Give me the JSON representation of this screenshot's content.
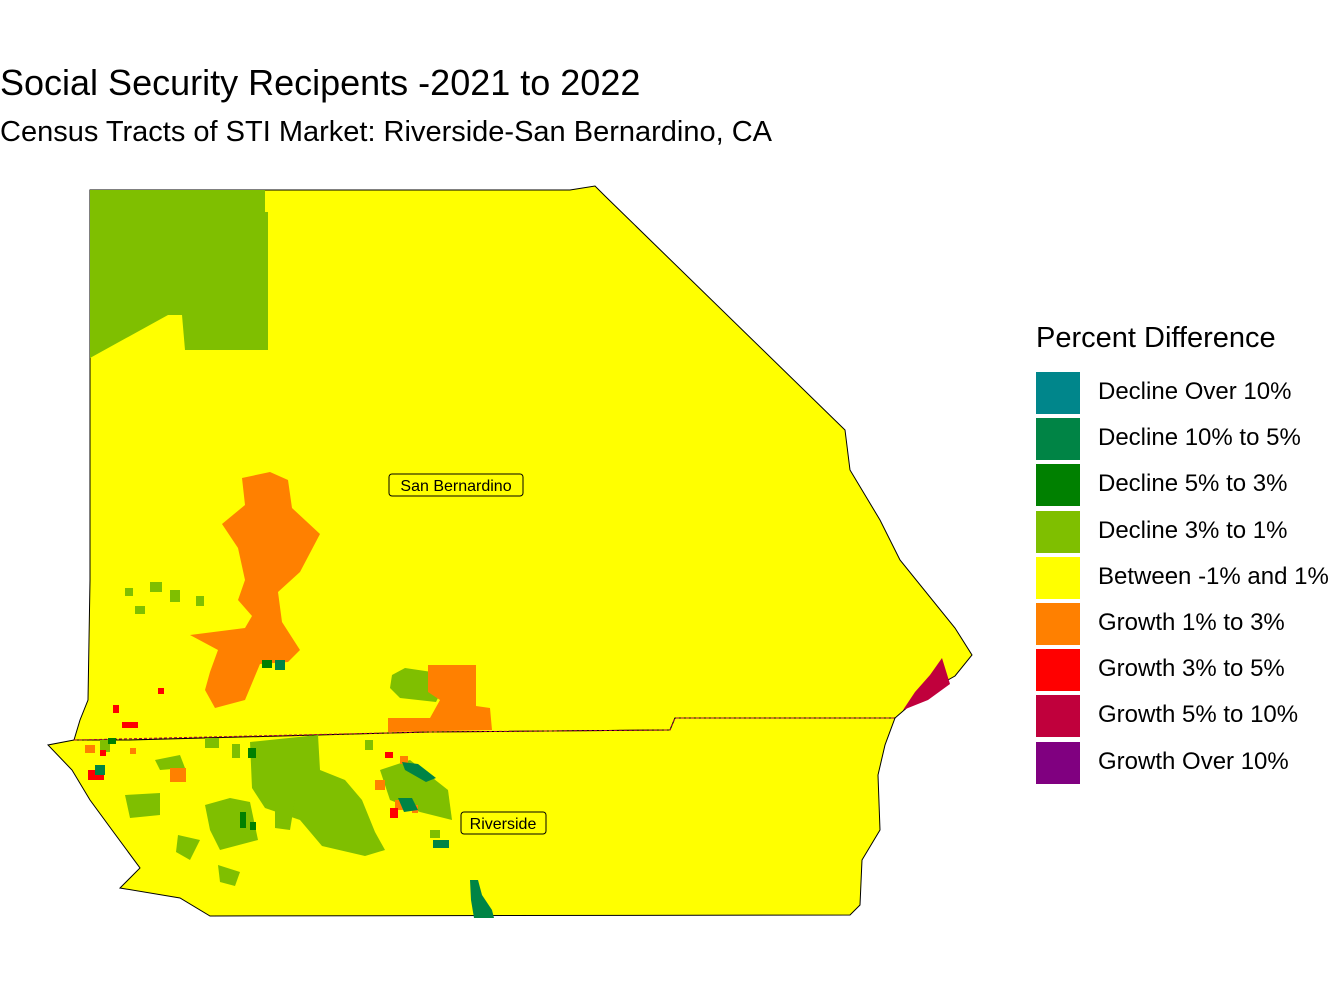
{
  "header": {
    "title": "Social Security Recipents -2021 to 2022",
    "subtitle": "Census Tracts of STI Market: Riverside-San Bernardino, CA"
  },
  "counties": {
    "san_bernardino": "San Bernardino",
    "riverside": "Riverside"
  },
  "legend": {
    "title": "Percent Difference",
    "items": [
      {
        "label": "Decline Over 10%",
        "color": "#00868B"
      },
      {
        "label": "Decline 10% to 5%",
        "color": "#008445"
      },
      {
        "label": "Decline 5% to 3%",
        "color": "#008000"
      },
      {
        "label": "Decline 3% to 1%",
        "color": "#7FBF00"
      },
      {
        "label": "Between -1% and 1%",
        "color": "#FFFF00"
      },
      {
        "label": "Growth 1% to 3%",
        "color": "#FF8000"
      },
      {
        "label": "Growth 3% to 5%",
        "color": "#FF0000"
      },
      {
        "label": "Growth 5% to 10%",
        "color": "#C0003C"
      },
      {
        "label": "Growth Over 10%",
        "color": "#800080"
      }
    ]
  }
}
